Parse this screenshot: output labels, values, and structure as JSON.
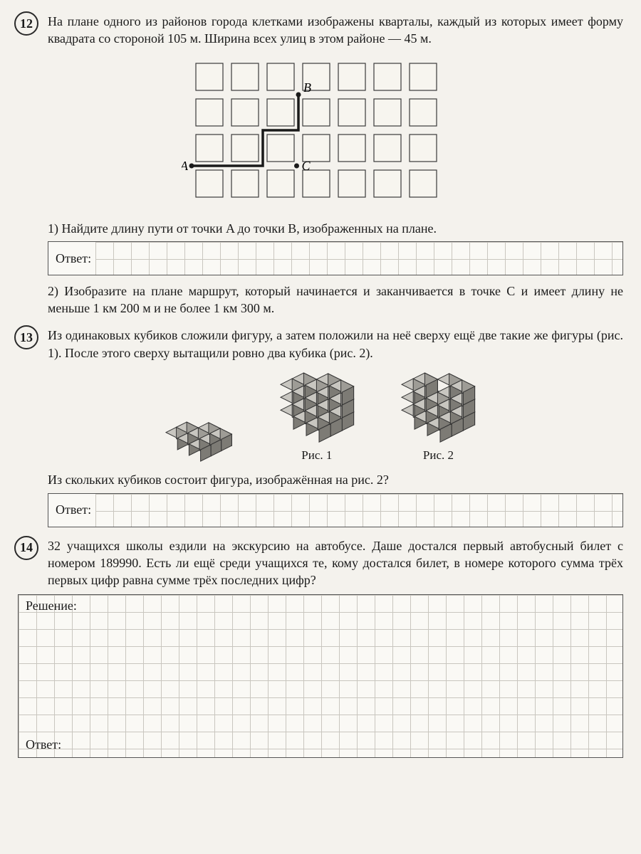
{
  "problems": {
    "p12": {
      "number": "12",
      "text": "На плане одного из районов города клетками изображены кварталы, каждый из которых имеет форму квадрата со стороной 105 м. Ши­рина всех улиц в этом районе — 45 м.",
      "sub1": "1) Найдите длину пути от точки A до точки B, изображенных на плане.",
      "sub2": "2) Изобразите на плане маршрут, который начинается и заканчива­ется в точке C и имеет длину не меньше 1 км 200 м и не более 1 км 300 м.",
      "answer_label": "Ответ:",
      "plan": {
        "grid_cols": 7,
        "grid_rows": 4,
        "block_size": 38,
        "gap": 12,
        "block_fill": "#f7f5ef",
        "block_stroke": "#3a3a3a",
        "path_stroke": "#1a1a1a",
        "path_width": 3.5,
        "labels": {
          "A": "A",
          "B": "B",
          "C": "C"
        },
        "path_points": [
          [
            0,
            3
          ],
          [
            2,
            3
          ],
          [
            2,
            2
          ],
          [
            3,
            2
          ],
          [
            3,
            1
          ]
        ],
        "A_pos": [
          0,
          3
        ],
        "B_pos": [
          3,
          1
        ],
        "C_pos": [
          2.95,
          3
        ]
      }
    },
    "p13": {
      "number": "13",
      "text": "Из одинаковых кубиков сложили фигуру, а затем положили на неё сверху ещё две такие же фигуры (рис. 1). После этого сверху выта­щили ровно два кубика (рис. 2).",
      "caption1": "Рис. 1",
      "caption2": "Рис. 2",
      "question": "Из скольких кубиков состоит фигура, изображённая на рис. 2?",
      "answer_label": "Ответ:",
      "cube": {
        "unit": 18,
        "colors": {
          "top": "#c8c6c0",
          "front": "#9e9c96",
          "side": "#7d7b75",
          "stroke": "#333333"
        }
      }
    },
    "p14": {
      "number": "14",
      "text": "32 учащихся школы ездили на экскурсию на автобусе. Даше достал­ся первый автобусный билет с номером 189990. Есть ли ещё среди учащихся те, кому достался билет, в номере которого сумма трёх первых цифр равна сумме трёх последних цифр?",
      "solution_label": "Решение:",
      "answer_label": "Ответ:"
    }
  },
  "style": {
    "page_bg": "#f4f2ed",
    "text_color": "#1a1a1a",
    "grid_line": "#c9c6bf",
    "border": "#555555",
    "font_family": "Times New Roman",
    "body_fontsize": 18
  }
}
